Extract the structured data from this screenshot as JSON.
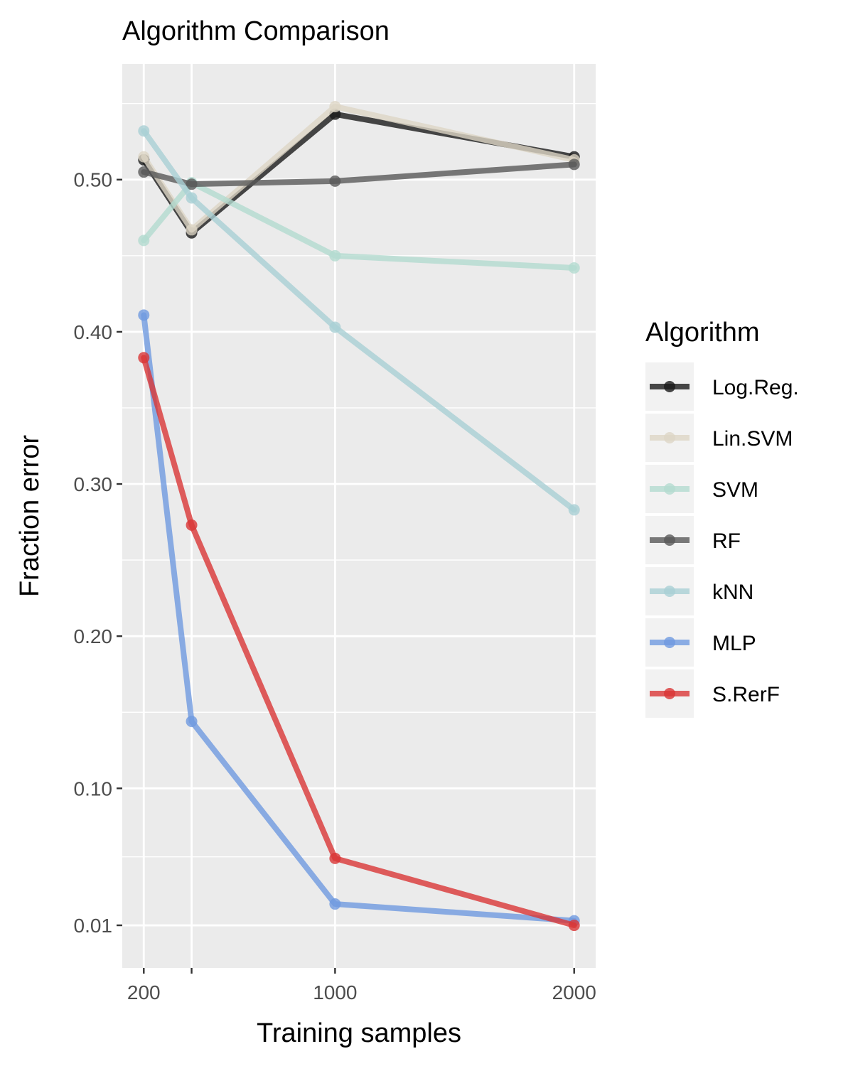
{
  "chart_data": {
    "type": "line",
    "title": "Algorithm Comparison",
    "xlabel": "Training samples",
    "ylabel": "Fraction error",
    "x": [
      200,
      400,
      1000,
      2000
    ],
    "x_tick_values": [
      200,
      400,
      1000,
      2000
    ],
    "x_tick_labels": [
      "200",
      "",
      "1000",
      "2000"
    ],
    "y_tick_values": [
      0.01,
      0.1,
      0.2,
      0.3,
      0.4,
      0.5
    ],
    "y_tick_labels": [
      "0.01",
      "0.10",
      "0.20",
      "0.30",
      "0.40",
      "0.50"
    ],
    "xlim": [
      110,
      2090
    ],
    "ylim": [
      -0.018,
      0.576
    ],
    "grid": true,
    "legend_title": "Algorithm",
    "legend_position": "right",
    "series": [
      {
        "name": "Log.Reg.",
        "color": "#1a1a1a",
        "values": [
          0.513,
          0.465,
          0.543,
          0.515
        ]
      },
      {
        "name": "Lin.SVM",
        "color": "#ddd6c5",
        "values": [
          0.515,
          0.467,
          0.548,
          0.513
        ]
      },
      {
        "name": "SVM",
        "color": "#b3dbd0",
        "values": [
          0.46,
          0.498,
          0.45,
          0.442
        ]
      },
      {
        "name": "RF",
        "color": "#595959",
        "values": [
          0.505,
          0.497,
          0.499,
          0.51
        ]
      },
      {
        "name": "kNN",
        "color": "#a9cfd4",
        "values": [
          0.532,
          0.488,
          0.403,
          0.283
        ]
      },
      {
        "name": "MLP",
        "color": "#6f9ae0",
        "values": [
          0.411,
          0.144,
          0.024,
          0.013
        ]
      },
      {
        "name": "S.RerF",
        "color": "#d93636",
        "values": [
          0.383,
          0.273,
          0.054,
          0.01
        ]
      }
    ]
  }
}
